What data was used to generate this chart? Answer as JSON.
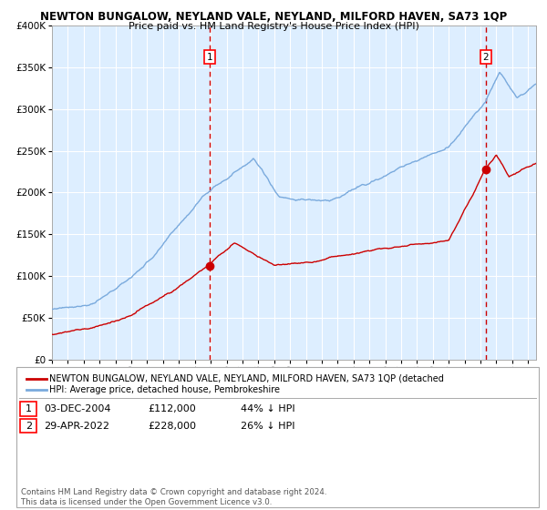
{
  "title": "NEWTON BUNGALOW, NEYLAND VALE, NEYLAND, MILFORD HAVEN, SA73 1QP",
  "subtitle": "Price paid vs. HM Land Registry's House Price Index (HPI)",
  "ytick_vals": [
    0,
    50000,
    100000,
    150000,
    200000,
    250000,
    300000,
    350000,
    400000
  ],
  "ylim": [
    0,
    400000
  ],
  "xlim_start": 1995.0,
  "xlim_end": 2025.5,
  "hpi_color": "#7aaadd",
  "price_color": "#cc0000",
  "background_color": "#ddeeff",
  "grid_color": "#ffffff",
  "marker1_date": 2004.92,
  "marker1_price": 112000,
  "marker2_date": 2022.33,
  "marker2_price": 228000,
  "legend_label1": "NEWTON BUNGALOW, NEYLAND VALE, NEYLAND, MILFORD HAVEN, SA73 1QP (detached",
  "legend_label2": "HPI: Average price, detached house, Pembrokeshire",
  "table_row1": [
    "1",
    "03-DEC-2004",
    "£112,000",
    "44% ↓ HPI"
  ],
  "table_row2": [
    "2",
    "29-APR-2022",
    "£228,000",
    "26% ↓ HPI"
  ],
  "footnote": "Contains HM Land Registry data © Crown copyright and database right 2024.\nThis data is licensed under the Open Government Licence v3.0."
}
